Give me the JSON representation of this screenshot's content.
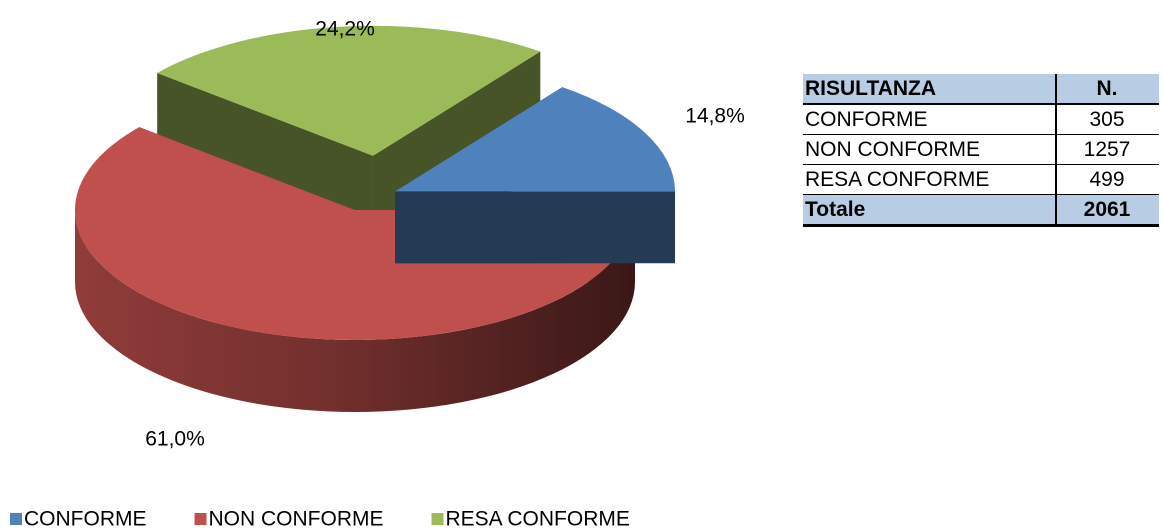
{
  "chart_data": {
    "type": "pie",
    "categories": [
      "CONFORME",
      "NON CONFORME",
      "RESA CONFORME"
    ],
    "values": [
      14.8,
      61.0,
      24.2
    ],
    "value_labels": [
      "14,8%",
      "61,0%",
      "24,2%"
    ],
    "colors": [
      "#4f81bd",
      "#c0504d",
      "#9bbb59"
    ],
    "legend": "bottom"
  },
  "table": {
    "header": [
      "RISULTANZA",
      "N."
    ],
    "rows": [
      [
        "CONFORME",
        "305"
      ],
      [
        "NON CONFORME",
        "1257"
      ],
      [
        "RESA CONFORME",
        "499"
      ]
    ],
    "total": [
      "Totale",
      "2061"
    ]
  }
}
